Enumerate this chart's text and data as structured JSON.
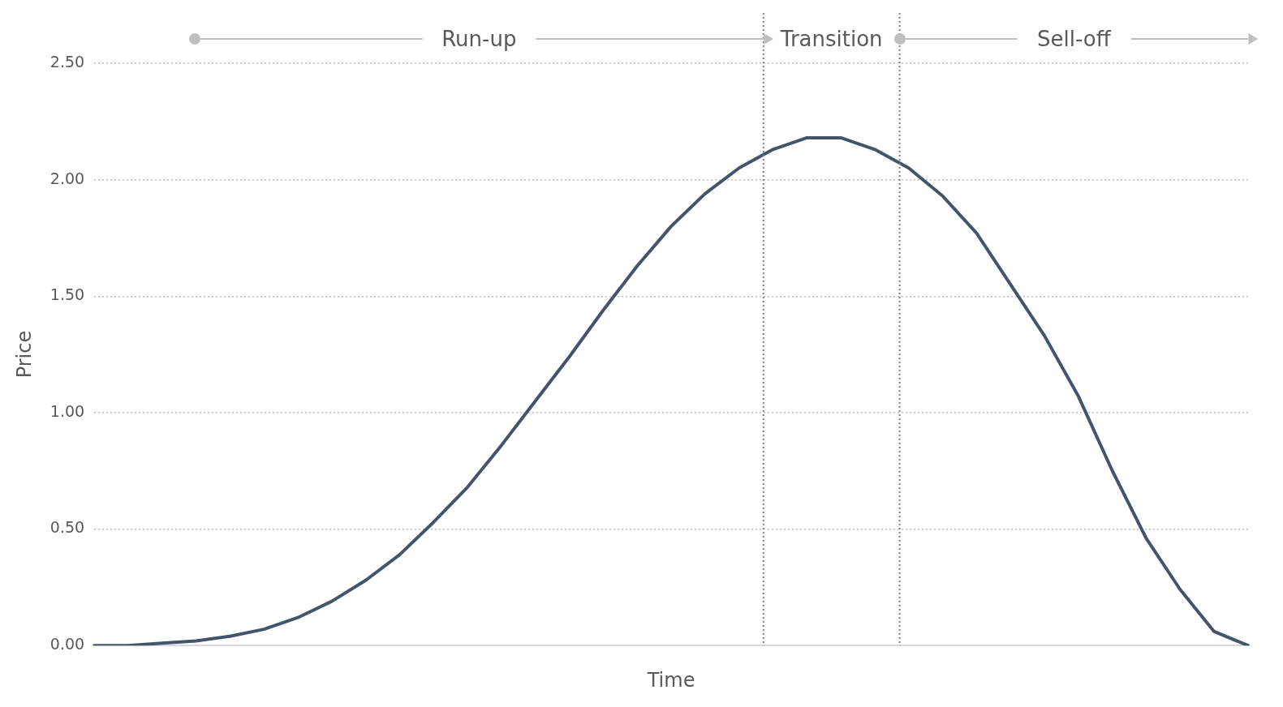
{
  "chart_data": {
    "type": "line",
    "xlabel": "Time",
    "ylabel": "Price",
    "categories": [
      null,
      null,
      null,
      null,
      null,
      null,
      null,
      null,
      null,
      null,
      null,
      null,
      null,
      null,
      null,
      null,
      null,
      null,
      null,
      null,
      null,
      null,
      null,
      null,
      null,
      null,
      null,
      null,
      null,
      null,
      null,
      null,
      null,
      null,
      null
    ],
    "series": [
      {
        "color": "#44546a",
        "values": [
          0,
          0,
          0.01,
          0.02,
          0.04,
          0.07,
          0.12,
          0.19,
          0.28,
          0.39,
          0.53,
          0.68,
          0.86,
          1.05,
          1.24,
          1.44,
          1.63,
          1.8,
          1.94,
          2.05,
          2.13,
          2.18,
          2.18,
          2.13,
          2.05,
          1.93,
          1.77,
          1.55,
          1.33,
          1.07,
          0.75,
          0.46,
          0.24,
          0.06,
          0
        ]
      }
    ],
    "ylim": [
      0,
      2.5
    ],
    "yticks": [
      {
        "value": 0,
        "label": "0.00"
      },
      {
        "value": 0.5,
        "label": "0.50"
      },
      {
        "value": 1,
        "label": "1.00"
      },
      {
        "value": 1.5,
        "label": "1.50"
      },
      {
        "value": 2,
        "label": "2.00"
      },
      {
        "value": 2.5,
        "label": "2.50"
      }
    ],
    "grid": "y",
    "legend": false,
    "marker": "none",
    "line_style": "solid",
    "tick_labels": "y",
    "annotations": [
      "Run-up",
      "Transition",
      "Sell-off"
    ]
  }
}
